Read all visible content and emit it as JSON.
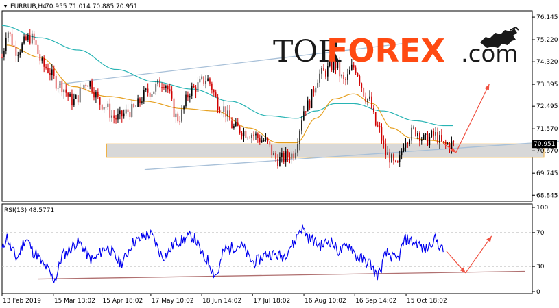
{
  "header": {
    "symbol": "EURRUB,H4",
    "ohlc": "70.955 71.014 70.885 70.951"
  },
  "logo": {
    "part1": "TOR",
    "part2": "FOREX",
    "part3": ".com"
  },
  "colors": {
    "bull_candle": "#000000",
    "bear_candle": "#d00000",
    "ma_fast": "#e6a020",
    "ma_slow": "#28b4b4",
    "trendline": "#a8c0d8",
    "support_zone_fill": "#d8d8d8",
    "support_zone_border": "#f0b040",
    "forecast_arrow": "#f05040",
    "rsi_line": "#0000ee",
    "rsi_trendline": "#b07070",
    "price_label_bg": "#000000"
  },
  "chart_data": [
    {
      "type": "candlestick",
      "ylim": [
        68.6,
        76.4
      ],
      "yticks": [
        "76.145",
        "75.220",
        "74.320",
        "73.395",
        "72.495",
        "71.570",
        "70.670",
        "69.745",
        "68.845"
      ],
      "ytick_values": [
        76.145,
        75.22,
        74.32,
        73.395,
        72.495,
        71.57,
        70.67,
        69.745,
        68.845
      ],
      "current_price": "70.951",
      "current_price_value": 70.951,
      "price_path": [
        [
          0,
          74.5
        ],
        [
          0.01,
          75.6
        ],
        [
          0.03,
          74.8
        ],
        [
          0.06,
          75.3
        ],
        [
          0.09,
          74.1
        ],
        [
          0.12,
          73.4
        ],
        [
          0.15,
          72.7
        ],
        [
          0.18,
          73.5
        ],
        [
          0.21,
          72.6
        ],
        [
          0.24,
          72.0
        ],
        [
          0.27,
          72.3
        ],
        [
          0.31,
          73.1
        ],
        [
          0.34,
          73.5
        ],
        [
          0.37,
          72.0
        ],
        [
          0.4,
          73.2
        ],
        [
          0.43,
          73.6
        ],
        [
          0.46,
          72.5
        ],
        [
          0.49,
          71.6
        ],
        [
          0.52,
          71.4
        ],
        [
          0.55,
          71.1
        ],
        [
          0.58,
          70.3
        ],
        [
          0.61,
          70.5
        ],
        [
          0.64,
          72.5
        ],
        [
          0.67,
          73.8
        ],
        [
          0.7,
          74.2
        ],
        [
          0.72,
          73.5
        ],
        [
          0.74,
          74.1
        ],
        [
          0.77,
          72.8
        ],
        [
          0.79,
          71.6
        ],
        [
          0.81,
          70.5
        ],
        [
          0.83,
          70.0
        ],
        [
          0.85,
          71.2
        ],
        [
          0.87,
          71.5
        ],
        [
          0.89,
          71.1
        ],
        [
          0.91,
          71.3
        ],
        [
          0.93,
          70.9
        ],
        [
          0.95,
          70.95
        ]
      ],
      "ma_fast_path": [
        [
          0.01,
          75.0
        ],
        [
          0.08,
          74.5
        ],
        [
          0.15,
          73.3
        ],
        [
          0.22,
          72.9
        ],
        [
          0.3,
          72.7
        ],
        [
          0.38,
          72.4
        ],
        [
          0.45,
          72.3
        ],
        [
          0.52,
          71.6
        ],
        [
          0.58,
          71.0
        ],
        [
          0.62,
          71.0
        ],
        [
          0.66,
          72.0
        ],
        [
          0.7,
          72.8
        ],
        [
          0.74,
          73.0
        ],
        [
          0.78,
          72.6
        ],
        [
          0.82,
          71.6
        ],
        [
          0.86,
          71.2
        ],
        [
          0.9,
          71.1
        ],
        [
          0.95,
          70.95
        ]
      ],
      "ma_slow_path": [
        [
          0.0,
          75.8
        ],
        [
          0.08,
          75.3
        ],
        [
          0.16,
          74.8
        ],
        [
          0.24,
          74.0
        ],
        [
          0.32,
          73.5
        ],
        [
          0.4,
          73.2
        ],
        [
          0.48,
          72.7
        ],
        [
          0.56,
          72.1
        ],
        [
          0.62,
          72.0
        ],
        [
          0.66,
          72.3
        ],
        [
          0.7,
          72.6
        ],
        [
          0.74,
          72.6
        ],
        [
          0.8,
          72.3
        ],
        [
          0.87,
          71.9
        ],
        [
          0.93,
          71.7
        ],
        [
          0.95,
          71.7
        ]
      ],
      "upper_trendline": [
        [
          0.12,
          73.4
        ],
        [
          0.86,
          75.1
        ]
      ],
      "lower_trendline": [
        [
          0.3,
          69.9
        ],
        [
          1.2,
          71.1
        ]
      ],
      "support_zone": [
        70.4,
        70.95
      ],
      "support_zone_x": [
        0.22,
        1.14
      ],
      "forecast_arrows": [
        [
          [
            0.93,
            70.95
          ],
          [
            0.955,
            70.6
          ]
        ],
        [
          [
            0.955,
            70.6
          ],
          [
            1.025,
            73.4
          ]
        ]
      ]
    },
    {
      "type": "line",
      "title": "RSI(13) 48.5771",
      "ylim": [
        0,
        100
      ],
      "yticks": [
        "100",
        "70",
        "30",
        "0"
      ],
      "ytick_values": [
        100,
        70,
        30,
        0
      ],
      "levels": [
        70,
        30
      ],
      "rsi_path": [
        [
          0.0,
          50
        ],
        [
          0.01,
          65
        ],
        [
          0.02,
          50
        ],
        [
          0.03,
          40
        ],
        [
          0.05,
          62
        ],
        [
          0.07,
          45
        ],
        [
          0.09,
          30
        ],
        [
          0.11,
          15
        ],
        [
          0.13,
          45
        ],
        [
          0.16,
          58
        ],
        [
          0.19,
          38
        ],
        [
          0.22,
          52
        ],
        [
          0.25,
          35
        ],
        [
          0.28,
          60
        ],
        [
          0.31,
          68
        ],
        [
          0.34,
          42
        ],
        [
          0.37,
          60
        ],
        [
          0.4,
          65
        ],
        [
          0.43,
          38
        ],
        [
          0.45,
          20
        ],
        [
          0.47,
          50
        ],
        [
          0.5,
          55
        ],
        [
          0.53,
          35
        ],
        [
          0.56,
          45
        ],
        [
          0.59,
          42
        ],
        [
          0.61,
          55
        ],
        [
          0.63,
          75
        ],
        [
          0.65,
          62
        ],
        [
          0.67,
          55
        ],
        [
          0.69,
          60
        ],
        [
          0.71,
          48
        ],
        [
          0.73,
          55
        ],
        [
          0.75,
          40
        ],
        [
          0.77,
          35
        ],
        [
          0.79,
          20
        ],
        [
          0.81,
          45
        ],
        [
          0.83,
          38
        ],
        [
          0.85,
          62
        ],
        [
          0.87,
          58
        ],
        [
          0.89,
          50
        ],
        [
          0.91,
          62
        ],
        [
          0.93,
          48
        ]
      ],
      "rsi_trendline": [
        [
          0.075,
          15
        ],
        [
          1.1,
          24
        ]
      ],
      "forecast_arrows": [
        [
          [
            0.935,
            48
          ],
          [
            0.975,
            22
          ]
        ],
        [
          [
            0.975,
            22
          ],
          [
            1.03,
            66
          ]
        ]
      ]
    }
  ],
  "x_axis": {
    "labels": [
      "13 Feb 2019",
      "15 Mar 13:02",
      "15 Apr 18:02",
      "17 May 10:02",
      "18 Jun 14:02",
      "17 Jul 18:02",
      "16 Aug 10:02",
      "16 Sep 14:02",
      "15 Oct 18:02"
    ],
    "positions": [
      0.0,
      0.108,
      0.21,
      0.313,
      0.42,
      0.527,
      0.635,
      0.742,
      0.85
    ]
  }
}
